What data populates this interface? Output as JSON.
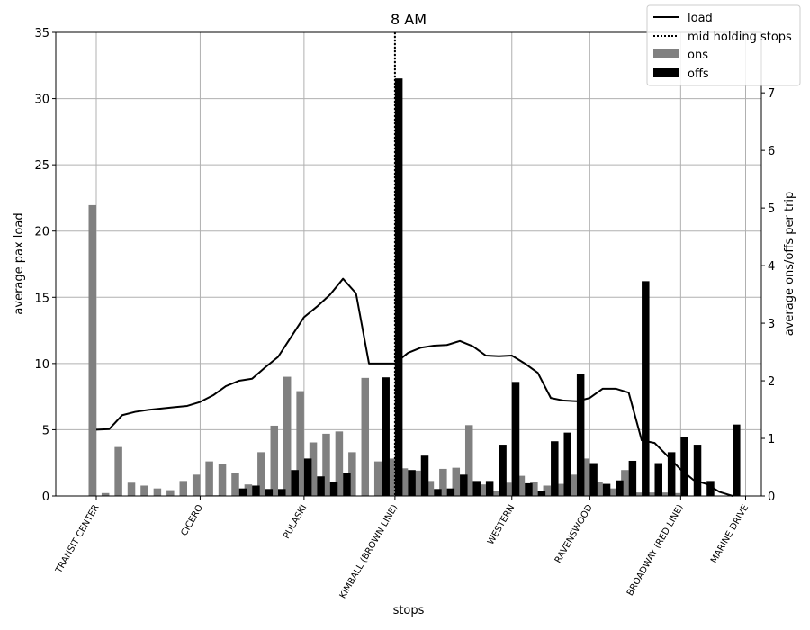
{
  "chart_data": {
    "type": "bar",
    "title": "8 AM",
    "xlabel": "stops",
    "ylabel_left": "average pax load",
    "ylabel_right": "average ons/offs per trip",
    "ylim_left": [
      0,
      35
    ],
    "ylim_right": [
      0,
      8.05
    ],
    "yticks_left": [
      0,
      5,
      10,
      15,
      20,
      25,
      30,
      35
    ],
    "yticks_right": [
      0,
      1,
      2,
      3,
      4,
      5,
      6,
      7
    ],
    "grid": true,
    "legend_position": "top-right",
    "legend": [
      "load",
      "mid holding stops",
      "ons",
      "offs"
    ],
    "colors": {
      "ons": "#808080",
      "offs": "#000000",
      "load": "#000000",
      "grid": "#b0b0b0"
    },
    "x_tick_labels": [
      {
        "label": "TRANSIT CENTER",
        "stop": 0
      },
      {
        "label": "CICERO",
        "stop": 8
      },
      {
        "label": "PULASKI",
        "stop": 16
      },
      {
        "label": "KIMBALL (BROWN LINE)",
        "stop": 23
      },
      {
        "label": "WESTERN",
        "stop": 32
      },
      {
        "label": "RAVENSWOOD",
        "stop": 38
      },
      {
        "label": "BROADWAY (RED LINE)",
        "stop": 45
      },
      {
        "label": "MARINE DRIVE",
        "stop": 50
      }
    ],
    "mid_holding_stop": 23,
    "series": [
      {
        "name": "load",
        "type": "line",
        "axis": "left",
        "values": [
          5.0,
          5.05,
          6.1,
          6.35,
          6.5,
          6.6,
          6.7,
          6.8,
          7.1,
          7.6,
          8.3,
          8.7,
          8.85,
          9.7,
          10.5,
          12.0,
          13.5,
          14.3,
          15.2,
          16.4,
          15.3,
          10.0,
          10.0,
          10.0,
          10.8,
          11.2,
          11.35,
          11.4,
          11.7,
          11.3,
          10.6,
          10.55,
          10.6,
          10.0,
          9.3,
          7.4,
          7.2,
          7.15,
          7.4,
          8.1,
          8.1,
          7.8,
          4.2,
          4.0,
          3.0,
          2.0,
          1.2,
          0.9,
          0.3,
          0.0
        ]
      },
      {
        "name": "ons",
        "type": "bar",
        "axis": "right",
        "values": [
          5.05,
          0.05,
          0.85,
          0.23,
          0.18,
          0.13,
          0.1,
          0.26,
          0.37,
          0.6,
          0.55,
          0.4,
          0.2,
          0.76,
          1.22,
          2.07,
          1.82,
          0.93,
          1.08,
          1.12,
          0.76,
          2.05,
          0.6,
          0.65,
          0.48,
          0.44,
          0.26,
          0.47,
          0.49,
          1.23,
          0.2,
          0.08,
          0.23,
          0.35,
          0.25,
          0.18,
          0.21,
          0.37,
          0.65,
          0.25,
          0.13,
          0.45,
          0.06,
          0.06,
          0.06,
          0.05,
          0.0
        ],
        "stops": [
          0,
          1,
          2,
          3,
          4,
          5,
          6,
          7,
          8,
          9,
          10,
          11,
          12,
          13,
          14,
          15,
          16,
          17,
          18,
          19,
          20,
          21,
          22,
          23,
          24,
          25,
          26,
          27,
          28,
          29,
          30,
          31,
          32,
          33,
          34,
          35,
          36,
          37,
          38,
          39,
          40,
          41,
          42,
          43,
          44,
          45,
          46
        ]
      },
      {
        "name": "offs",
        "type": "bar",
        "axis": "right",
        "values": [
          0.01,
          0.13,
          0.18,
          0.12,
          0.12,
          0.45,
          0.65,
          0.34,
          0.24,
          0.4,
          2.06,
          7.25,
          0.45,
          0.7,
          0.12,
          0.13,
          0.37,
          0.26,
          0.26,
          0.89,
          1.98,
          0.22,
          0.08,
          0.95,
          1.1,
          2.12,
          0.57,
          0.21,
          0.27,
          0.61,
          3.73,
          0.57,
          0.76,
          1.03,
          0.89,
          0.26,
          1.24
        ],
        "stops": [
          9,
          11,
          12,
          13,
          14,
          15,
          16,
          17,
          18,
          19,
          22,
          23,
          24,
          25,
          26,
          27,
          28,
          29,
          30,
          31,
          32,
          33,
          34,
          35,
          36,
          37,
          38,
          39,
          40,
          41,
          42,
          43,
          44,
          45,
          46,
          47,
          49
        ]
      }
    ]
  }
}
